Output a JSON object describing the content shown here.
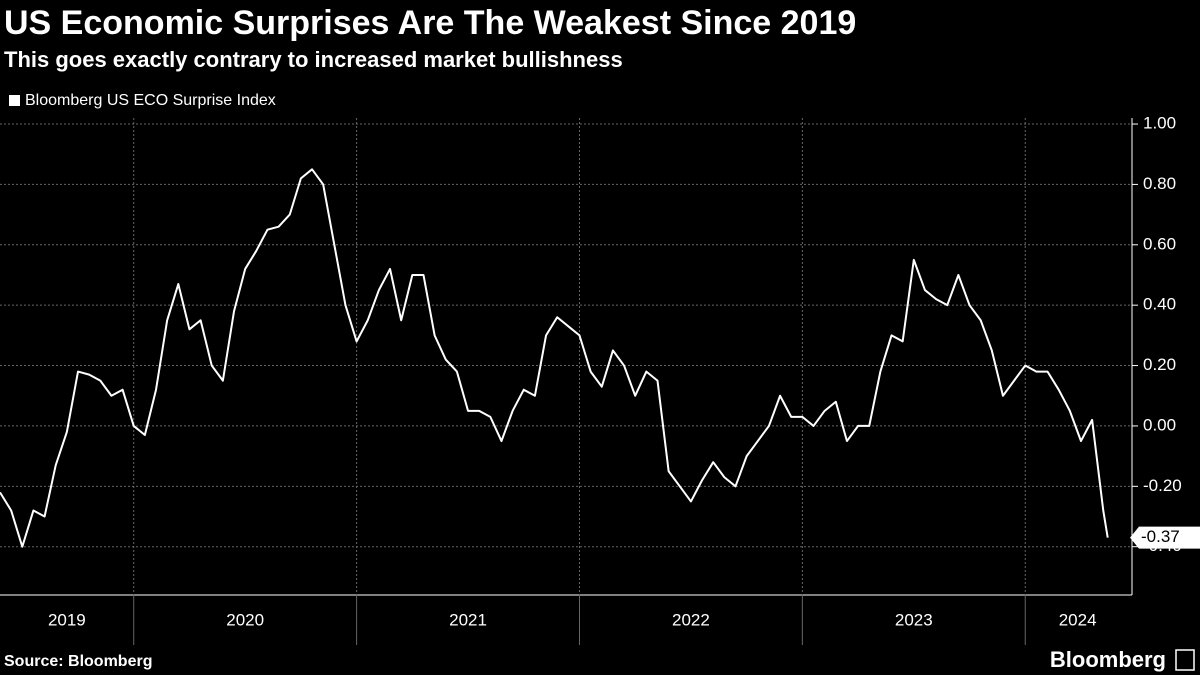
{
  "chart_data": {
    "type": "line",
    "title": "US Economic Surprises Are The Weakest Since 2019",
    "subtitle": "This goes exactly contrary to increased market bullishness",
    "source": "Source: Bloomberg",
    "brand": "Bloomberg",
    "x": [
      2019.4,
      2019.45,
      2019.5,
      2019.55,
      2019.6,
      2019.65,
      2019.7,
      2019.75,
      2019.8,
      2019.85,
      2019.9,
      2019.95,
      2020.0,
      2020.05,
      2020.1,
      2020.15,
      2020.2,
      2020.25,
      2020.3,
      2020.35,
      2020.4,
      2020.45,
      2020.5,
      2020.55,
      2020.6,
      2020.65,
      2020.7,
      2020.75,
      2020.8,
      2020.85,
      2020.9,
      2020.95,
      2021.0,
      2021.05,
      2021.1,
      2021.15,
      2021.2,
      2021.25,
      2021.3,
      2021.35,
      2021.4,
      2021.45,
      2021.5,
      2021.55,
      2021.6,
      2021.65,
      2021.7,
      2021.75,
      2021.8,
      2021.85,
      2021.9,
      2021.95,
      2022.0,
      2022.05,
      2022.1,
      2022.15,
      2022.2,
      2022.25,
      2022.3,
      2022.35,
      2022.4,
      2022.45,
      2022.5,
      2022.55,
      2022.6,
      2022.65,
      2022.7,
      2022.75,
      2022.8,
      2022.85,
      2022.9,
      2022.95,
      2023.0,
      2023.05,
      2023.1,
      2023.15,
      2023.2,
      2023.25,
      2023.3,
      2023.35,
      2023.4,
      2023.45,
      2023.5,
      2023.55,
      2023.6,
      2023.65,
      2023.7,
      2023.75,
      2023.8,
      2023.85,
      2023.9,
      2023.95,
      2024.0,
      2024.05,
      2024.1,
      2024.15,
      2024.2,
      2024.25,
      2024.3,
      2024.35,
      2024.37
    ],
    "series": [
      {
        "name": "Bloomberg US ECO Surprise Index",
        "color": "#ffffff",
        "values": [
          -0.22,
          -0.28,
          -0.4,
          -0.28,
          -0.3,
          -0.13,
          -0.02,
          0.18,
          0.17,
          0.15,
          0.1,
          0.12,
          0.0,
          -0.03,
          0.12,
          0.35,
          0.47,
          0.32,
          0.35,
          0.2,
          0.15,
          0.38,
          0.52,
          0.58,
          0.65,
          0.66,
          0.7,
          0.82,
          0.85,
          0.8,
          0.6,
          0.4,
          0.28,
          0.35,
          0.45,
          0.52,
          0.35,
          0.5,
          0.5,
          0.3,
          0.22,
          0.18,
          0.05,
          0.05,
          0.03,
          -0.05,
          0.05,
          0.12,
          0.1,
          0.3,
          0.36,
          0.33,
          0.3,
          0.18,
          0.13,
          0.25,
          0.2,
          0.1,
          0.18,
          0.15,
          -0.15,
          -0.2,
          -0.25,
          -0.18,
          -0.12,
          -0.17,
          -0.2,
          -0.1,
          -0.05,
          0.0,
          0.1,
          0.03,
          0.03,
          0.0,
          0.05,
          0.08,
          -0.05,
          0.0,
          0.0,
          0.18,
          0.3,
          0.28,
          0.55,
          0.45,
          0.42,
          0.4,
          0.5,
          0.4,
          0.35,
          0.25,
          0.1,
          0.15,
          0.2,
          0.18,
          0.18,
          0.12,
          0.05,
          -0.05,
          0.02,
          -0.28,
          -0.37
        ]
      }
    ],
    "xlim": [
      2019.4,
      2024.47
    ],
    "xticks": [
      {
        "value": 2019,
        "label": "2019"
      },
      {
        "value": 2020,
        "label": "2020"
      },
      {
        "value": 2021,
        "label": "2021"
      },
      {
        "value": 2022,
        "label": "2022"
      },
      {
        "value": 2023,
        "label": "2023"
      },
      {
        "value": 2024,
        "label": "2024"
      }
    ],
    "ylim": [
      -0.56,
      1.02
    ],
    "yticks": [
      {
        "value": -0.4,
        "label": "-0.40"
      },
      {
        "value": -0.2,
        "label": "-0.20"
      },
      {
        "value": 0,
        "label": "0.00"
      },
      {
        "value": 0.2,
        "label": "0.20"
      },
      {
        "value": 0.4,
        "label": "0.40"
      },
      {
        "value": 0.6,
        "label": "0.60"
      },
      {
        "value": 0.8,
        "label": "0.80"
      },
      {
        "value": 1,
        "label": "1.00"
      }
    ],
    "grid": true
  }
}
